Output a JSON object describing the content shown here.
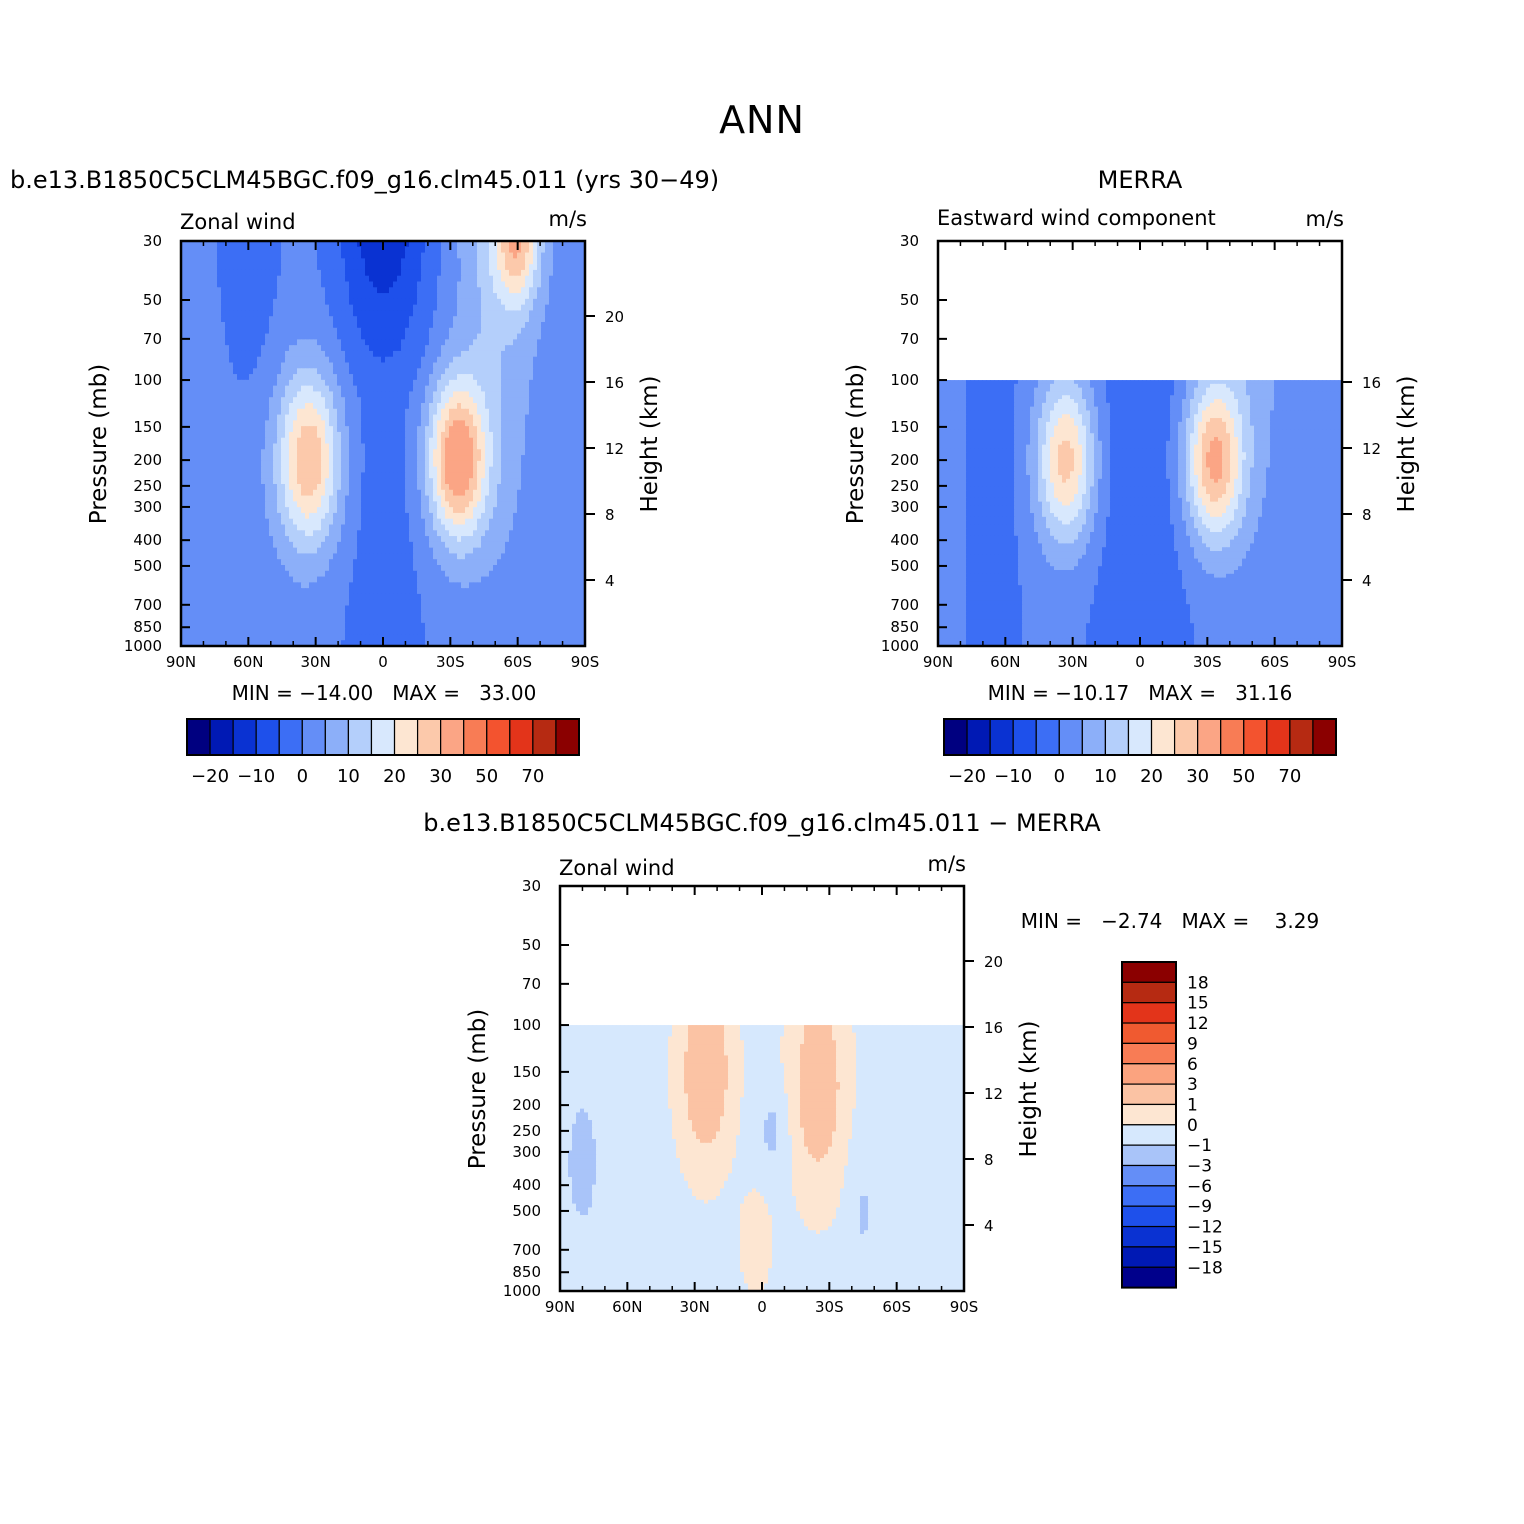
{
  "page": {
    "title": "ANN"
  },
  "colors": {
    "zonal_palette": [
      "#000080",
      "#0019b4",
      "#0a32d2",
      "#1e50eb",
      "#3c6ef5",
      "#648ef7",
      "#8caff9",
      "#b4cffb",
      "#d8e8fd",
      "#fde6d2",
      "#fcc9ab",
      "#fba585",
      "#f87c55",
      "#f3532f",
      "#e3341a",
      "#b62a12",
      "#8b0000"
    ],
    "diff_palette": [
      "#00008b",
      "#0019b4",
      "#0a32d2",
      "#1e50eb",
      "#3c6ef5",
      "#648ef7",
      "#a9c4f9",
      "#d6e8fd",
      "#fde6d2",
      "#fbc3a4",
      "#fba37f",
      "#f87c55",
      "#f05a30",
      "#e3341a",
      "#b62a12",
      "#8b0000"
    ]
  },
  "chart_data": [
    {
      "type": "heatmap",
      "title": "b.e13.B1850C5CLM45BGC.f09_g16.clm45.011 (yrs 30−49)",
      "left_string": "Zonal wind",
      "right_string": "m/s",
      "ylabel": "Pressure (mb)",
      "ylabel_right": "Height (km)",
      "x_ticks": [
        "90N",
        "60N",
        "30N",
        "0",
        "30S",
        "60S",
        "90S"
      ],
      "x_values": [
        90,
        60,
        30,
        0,
        -30,
        -60,
        -90
      ],
      "y_ticks": [
        "30",
        "50",
        "70",
        "100",
        "150",
        "200",
        "250",
        "300",
        "400",
        "500",
        "700",
        "850",
        "1000"
      ],
      "y_values": [
        30,
        50,
        70,
        100,
        150,
        200,
        250,
        300,
        400,
        500,
        700,
        850,
        1000
      ],
      "y_right_ticks": [
        "20",
        "16",
        "12",
        "8",
        "4"
      ],
      "y_right_values": [
        20,
        16,
        12,
        8,
        4
      ],
      "data_top_pressure": 30,
      "ylim": [
        1000,
        30
      ],
      "log_scale_y": true,
      "min_max_text": "MIN = −14.00   MAX =   33.00",
      "min": -14.0,
      "max": 33.0,
      "colorbar_labels": [
        "−20",
        "−10",
        "0",
        "10",
        "20",
        "30",
        "50",
        "70"
      ],
      "colorbar_orientation": "horizontal"
    },
    {
      "type": "heatmap",
      "title": "MERRA",
      "left_string": "Eastward wind component",
      "right_string": "m/s",
      "ylabel": "Pressure (mb)",
      "ylabel_right": "Height (km)",
      "x_ticks": [
        "90N",
        "60N",
        "30N",
        "0",
        "30S",
        "60S",
        "90S"
      ],
      "x_values": [
        90,
        60,
        30,
        0,
        -30,
        -60,
        -90
      ],
      "y_ticks": [
        "30",
        "50",
        "70",
        "100",
        "150",
        "200",
        "250",
        "300",
        "400",
        "500",
        "700",
        "850",
        "1000"
      ],
      "y_values": [
        30,
        50,
        70,
        100,
        150,
        200,
        250,
        300,
        400,
        500,
        700,
        850,
        1000
      ],
      "y_right_ticks": [
        "16",
        "12",
        "8",
        "4"
      ],
      "y_right_values": [
        16,
        12,
        8,
        4
      ],
      "data_top_pressure": 100,
      "ylim": [
        1000,
        30
      ],
      "log_scale_y": true,
      "min_max_text": "MIN = −10.17   MAX =   31.16",
      "min": -10.17,
      "max": 31.16,
      "colorbar_labels": [
        "−20",
        "−10",
        "0",
        "10",
        "20",
        "30",
        "50",
        "70"
      ],
      "colorbar_orientation": "horizontal"
    },
    {
      "type": "heatmap",
      "title": "b.e13.B1850C5CLM45BGC.f09_g16.clm45.011 − MERRA",
      "left_string": "Zonal wind",
      "right_string": "m/s",
      "ylabel": "Pressure (mb)",
      "ylabel_right": "Height (km)",
      "x_ticks": [
        "90N",
        "60N",
        "30N",
        "0",
        "30S",
        "60S",
        "90S"
      ],
      "x_values": [
        90,
        60,
        30,
        0,
        -30,
        -60,
        -90
      ],
      "y_ticks": [
        "30",
        "50",
        "70",
        "100",
        "150",
        "200",
        "250",
        "300",
        "400",
        "500",
        "700",
        "850",
        "1000"
      ],
      "y_values": [
        30,
        50,
        70,
        100,
        150,
        200,
        250,
        300,
        400,
        500,
        700,
        850,
        1000
      ],
      "y_right_ticks": [
        "20",
        "16",
        "12",
        "8",
        "4"
      ],
      "y_right_values": [
        20,
        16,
        12,
        8,
        4
      ],
      "data_top_pressure": 100,
      "ylim": [
        1000,
        30
      ],
      "log_scale_y": true,
      "min_max_text": "MIN =   −2.74   MAX =    3.29",
      "min": -2.74,
      "max": 3.29,
      "colorbar_labels": [
        "18",
        "15",
        "12",
        "9",
        "6",
        "3",
        "1",
        "0",
        "−1",
        "−3",
        "−6",
        "−9",
        "−12",
        "−15",
        "−18"
      ],
      "colorbar_orientation": "vertical"
    }
  ]
}
